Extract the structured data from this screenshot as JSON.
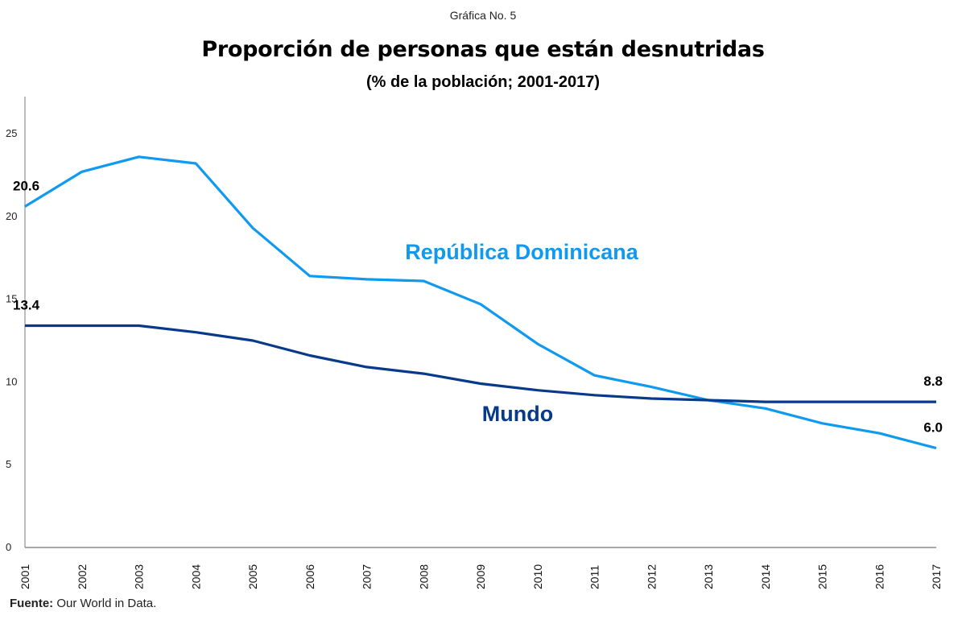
{
  "caption": "Gráfica No. 5",
  "source": {
    "label": "Fuente:",
    "text": " Our World in Data."
  },
  "colors": {
    "dr": "#0f9af0",
    "world": "#073a8a",
    "axis": "#999999",
    "text": "#000000"
  },
  "chart_data": {
    "type": "line",
    "title": "Proporción de personas que están desnutridas",
    "subtitle": "(% de la población; 2001-2017)",
    "xlabel": "",
    "ylabel": "",
    "x": [
      "2001",
      "2002",
      "2003",
      "2004",
      "2005",
      "2006",
      "2007",
      "2008",
      "2009",
      "2010",
      "2011",
      "2012",
      "2013",
      "2014",
      "2015",
      "2016",
      "2017"
    ],
    "ylim": [
      0,
      27
    ],
    "yticks": [
      0,
      5,
      10,
      15,
      20,
      25
    ],
    "grid": false,
    "legend": "inline-labels",
    "series": [
      {
        "key": "dr",
        "name": "República Dominicana",
        "values": [
          20.6,
          22.7,
          23.6,
          23.2,
          19.3,
          16.4,
          16.2,
          16.1,
          14.7,
          12.3,
          10.4,
          9.7,
          8.9,
          8.4,
          7.5,
          6.9,
          6.0
        ]
      },
      {
        "key": "world",
        "name": "Mundo",
        "values": [
          13.4,
          13.4,
          13.4,
          13.0,
          12.5,
          11.6,
          10.9,
          10.5,
          9.9,
          9.5,
          9.2,
          9.0,
          8.9,
          8.8,
          8.8,
          8.8,
          8.8
        ]
      }
    ],
    "annotations": [
      {
        "series": "dr",
        "x": "2001",
        "text": "20.6"
      },
      {
        "series": "world",
        "x": "2001",
        "text": "13.4"
      },
      {
        "series": "world",
        "x": "2017",
        "text": "8.8"
      },
      {
        "series": "dr",
        "x": "2017",
        "text": "6.0"
      }
    ]
  }
}
